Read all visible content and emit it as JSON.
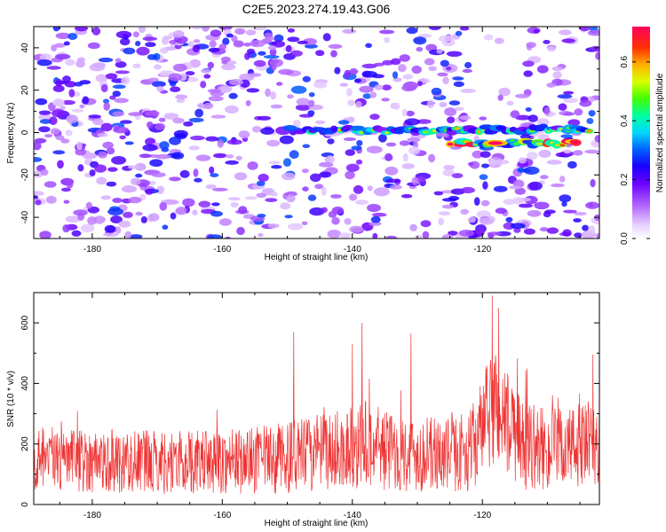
{
  "title": "C2E5.2023.274.19.43.G06",
  "chart_data": [
    {
      "type": "heatmap",
      "xlabel": "Height of straight line (km)",
      "ylabel": "Frequency (Hz)",
      "xlim": [
        -189,
        -102
      ],
      "ylim": [
        -50,
        50
      ],
      "xticks": [
        -180,
        -160,
        -140,
        -120
      ],
      "yticks": [
        -40,
        -20,
        0,
        20,
        40
      ],
      "colorbar": {
        "label": "Normalized spectral amplitude",
        "range": [
          0.0,
          0.72
        ],
        "ticks": [
          0.0,
          0.2,
          0.4,
          0.6
        ]
      },
      "signal_tracks": [
        {
          "x_start": -150,
          "x_end": -122,
          "frequency": 1,
          "peak_amplitude": 0.45
        },
        {
          "x_start": -124,
          "x_end": -103,
          "frequency": 1.5,
          "peak_amplitude": 0.5
        },
        {
          "x_start": -125,
          "x_end": -105,
          "frequency": -5,
          "peak_amplitude": 0.72
        }
      ],
      "background_noise_amplitude": [
        0.05,
        0.3
      ],
      "noise_gap_x": [
        -122,
        -114
      ]
    },
    {
      "type": "line",
      "xlabel": "Height of straight line (km)",
      "ylabel": "SNR (10 * v/v)",
      "xlim": [
        -189,
        -102
      ],
      "ylim": [
        0,
        700
      ],
      "xticks": [
        -180,
        -160,
        -140,
        -120
      ],
      "yticks": [
        0,
        200,
        400,
        600
      ],
      "color": "#ee3333",
      "envelope": {
        "x": [
          -189,
          -180,
          -170,
          -160,
          -155,
          -150,
          -145,
          -140,
          -138,
          -135,
          -130,
          -125,
          -122,
          -120,
          -118,
          -116,
          -114,
          -110,
          -106,
          -102
        ],
        "baseline": [
          150,
          145,
          140,
          140,
          145,
          155,
          170,
          190,
          200,
          180,
          165,
          165,
          175,
          250,
          330,
          260,
          200,
          180,
          190,
          200
        ],
        "spread": [
          110,
          105,
          105,
          105,
          110,
          120,
          130,
          140,
          150,
          135,
          125,
          125,
          130,
          170,
          210,
          180,
          150,
          135,
          140,
          150
        ]
      },
      "notable_peaks": [
        {
          "x": -149,
          "y": 570
        },
        {
          "x": -140,
          "y": 530
        },
        {
          "x": -138.5,
          "y": 600
        },
        {
          "x": -131,
          "y": 565
        },
        {
          "x": -118.5,
          "y": 690
        },
        {
          "x": -117.5,
          "y": 650
        },
        {
          "x": -103,
          "y": 495
        }
      ]
    }
  ]
}
